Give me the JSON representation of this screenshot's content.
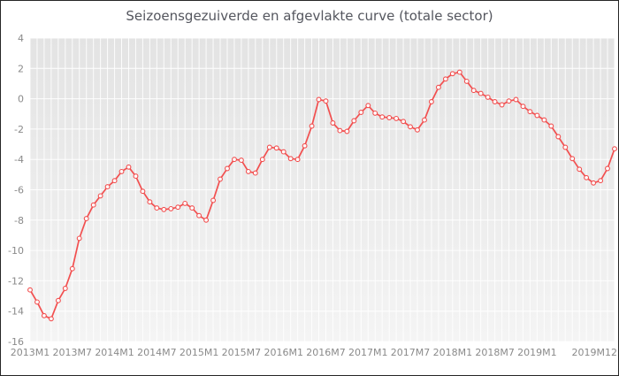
{
  "chart_data": {
    "type": "line",
    "title": "Seizoensgezuiverde en afgevlakte curve (totale sector)",
    "x_start": "2013M1",
    "x_end": "2019M12",
    "frequency": "monthly",
    "x_tick_labels": [
      "2013M1",
      "2013M7",
      "2014M1",
      "2014M7",
      "2015M1",
      "2015M7",
      "2016M1",
      "2016M7",
      "2017M1",
      "2017M7",
      "2018M1",
      "2018M7",
      "2019M1",
      "2019M12"
    ],
    "x_tick_month_indices": [
      0,
      6,
      12,
      18,
      24,
      30,
      36,
      42,
      48,
      54,
      60,
      66,
      72,
      83
    ],
    "y_ticks": [
      4,
      2,
      0,
      -2,
      -4,
      -6,
      -8,
      -10,
      -12,
      -14,
      -16
    ],
    "ylim": [
      -16,
      4
    ],
    "grid": "on",
    "legend": "none",
    "series": [
      {
        "values": [
          -12.6,
          -13.4,
          -14.3,
          -14.5,
          -13.3,
          -12.5,
          -11.2,
          -9.2,
          -7.9,
          -7.0,
          -6.4,
          -5.8,
          -5.4,
          -4.8,
          -4.5,
          -5.1,
          -6.1,
          -6.8,
          -7.2,
          -7.3,
          -7.25,
          -7.15,
          -6.9,
          -7.2,
          -7.7,
          -8.0,
          -6.7,
          -5.3,
          -4.6,
          -4.0,
          -4.05,
          -4.8,
          -4.9,
          -4.0,
          -3.2,
          -3.25,
          -3.5,
          -3.95,
          -4.0,
          -3.1,
          -1.8,
          -0.05,
          -0.15,
          -1.6,
          -2.1,
          -2.15,
          -1.45,
          -0.9,
          -0.45,
          -0.95,
          -1.2,
          -1.25,
          -1.3,
          -1.5,
          -1.85,
          -2.05,
          -1.4,
          -0.2,
          0.75,
          1.3,
          1.65,
          1.75,
          1.15,
          0.55,
          0.35,
          0.1,
          -0.2,
          -0.4,
          -0.15,
          -0.05,
          -0.5,
          -0.85,
          -1.1,
          -1.4,
          -1.8,
          -2.5,
          -3.2,
          -3.95,
          -4.65,
          -5.2,
          -5.55,
          -5.4,
          -4.6,
          -3.3
        ]
      }
    ]
  },
  "colors": {
    "line": "#f24f4f",
    "marker_fill": "#ffffff",
    "plot_bg_top": "#e3e3e3",
    "plot_bg_bottom": "#f4f4f4",
    "gridline": "#ffffff",
    "axis_text": "#8a8a8a",
    "title_text": "#54565e",
    "border": "#262626"
  }
}
